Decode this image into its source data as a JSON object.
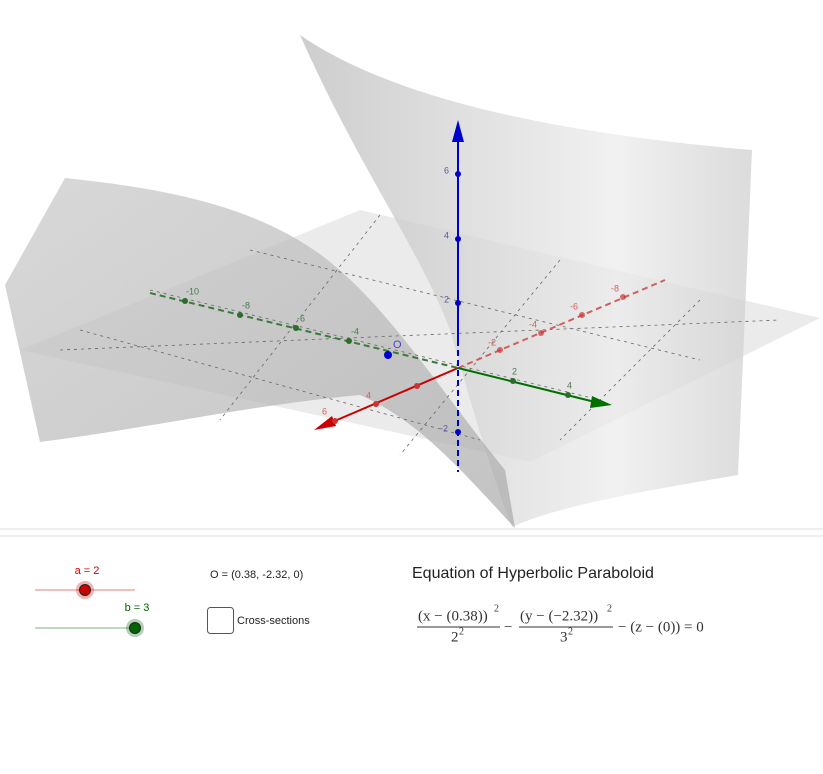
{
  "view3d": {
    "z_ticks": [
      "6",
      "4",
      "2",
      "-2"
    ],
    "y_ticks": [
      "-10",
      "-8",
      "-6",
      "-4",
      "2",
      "4"
    ],
    "x_ticks_front": [
      "6",
      "4"
    ],
    "x_ticks_back": [
      "-2",
      "-4",
      "-6",
      "-8"
    ],
    "point_label": "O"
  },
  "sliders": [
    {
      "label": "a = 2",
      "color": "#cc0000"
    },
    {
      "label": "b = 3",
      "color": "#006400"
    }
  ],
  "point_text": "O = (0.38, -2.32, 0)",
  "checkbox_label": "Cross-sections",
  "title": "Equation of Hyperbolic Paraboloid",
  "equation": {
    "x_num": "(x − (0.38))",
    "x_num_exp": "2",
    "x_den": "2",
    "x_den_exp": "2",
    "minus": "−",
    "y_num": "(y − (−2.32))",
    "y_num_exp": "2",
    "y_den": "3",
    "y_den_exp": "2",
    "rest": "− (z − (0)) = 0"
  }
}
